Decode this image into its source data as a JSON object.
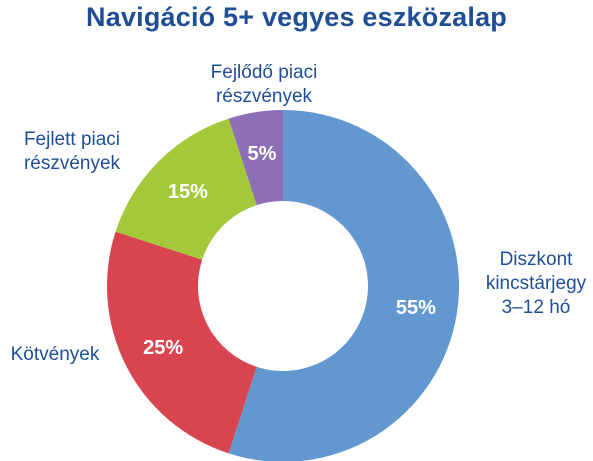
{
  "chart_data": {
    "type": "pie",
    "variant": "donut",
    "title": "Navigáció 5+ vegyes eszközalap",
    "slices": [
      {
        "label": [
          "Diszkont",
          "kincstárjegy",
          "3–12 hó"
        ],
        "value": 55,
        "value_label": "55%",
        "color": "#6297d0"
      },
      {
        "label": [
          "Kötvények"
        ],
        "value": 25,
        "value_label": "25%",
        "color": "#d94451"
      },
      {
        "label": [
          "Fejlett piaci",
          "részvények"
        ],
        "value": 15,
        "value_label": "15%",
        "color": "#a3c93a"
      },
      {
        "label": [
          "Fejlődő piaci",
          "részvények"
        ],
        "value": 5,
        "value_label": "5%",
        "color": "#8d6fb8"
      }
    ],
    "start_angle_deg": 0,
    "direction": "clockwise"
  }
}
